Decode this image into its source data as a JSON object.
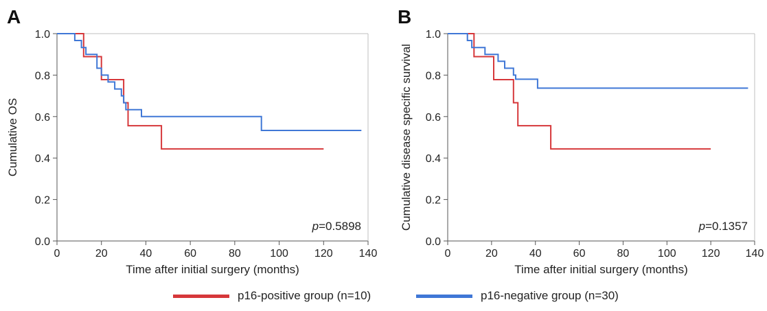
{
  "colors": {
    "p16_positive": "#d6373a",
    "p16_negative": "#3f77d6",
    "axis": "#555555",
    "text": "#222222"
  },
  "legend": {
    "positive_label": "p16-positive group (n=10)",
    "negative_label": "p16-negative group (n=30)"
  },
  "chart_data": [
    {
      "type": "line",
      "panel_label": "A",
      "xlabel": "Time after initial surgery (months)",
      "ylabel": "Cumulative OS",
      "xlim": [
        0,
        140
      ],
      "ylim": [
        0,
        1.0
      ],
      "x_ticks": [
        "0",
        "20",
        "40",
        "60",
        "80",
        "100",
        "120",
        "140"
      ],
      "y_ticks": [
        "0.0",
        "0.2",
        "0.4",
        "0.6",
        "0.8",
        "1.0"
      ],
      "annotation": {
        "p_label": "p",
        "p_value": "=0.5898"
      },
      "series": [
        {
          "name": "p16-positive group (n=10)",
          "color_key": "p16_positive",
          "x": [
            0,
            12,
            12,
            20,
            20,
            22,
            22,
            30,
            30,
            32,
            32,
            47,
            47,
            120
          ],
          "y": [
            1.0,
            1.0,
            0.889,
            0.889,
            0.778,
            0.778,
            0.778,
            0.778,
            0.667,
            0.667,
            0.556,
            0.556,
            0.444,
            0.444
          ]
        },
        {
          "name": "p16-negative group (n=30)",
          "color_key": "p16_negative",
          "x": [
            0,
            8,
            8,
            11,
            11,
            13,
            13,
            18,
            18,
            20,
            20,
            23,
            23,
            26,
            26,
            29,
            29,
            30,
            30,
            31,
            31,
            38,
            38,
            41,
            41,
            92,
            92,
            137
          ],
          "y": [
            1.0,
            1.0,
            0.967,
            0.967,
            0.933,
            0.933,
            0.9,
            0.9,
            0.833,
            0.833,
            0.8,
            0.8,
            0.767,
            0.767,
            0.733,
            0.733,
            0.7,
            0.7,
            0.667,
            0.667,
            0.633,
            0.633,
            0.6,
            0.6,
            0.6,
            0.6,
            0.533,
            0.533
          ]
        }
      ]
    },
    {
      "type": "line",
      "panel_label": "B",
      "xlabel": "Time after initial surgery (months)",
      "ylabel": "Cumulative disease specific survival",
      "xlim": [
        0,
        140
      ],
      "ylim": [
        0,
        1.0
      ],
      "x_ticks": [
        "0",
        "20",
        "40",
        "60",
        "80",
        "100",
        "120",
        "140"
      ],
      "y_ticks": [
        "0.0",
        "0.2",
        "0.4",
        "0.6",
        "0.8",
        "1.0"
      ],
      "annotation": {
        "p_label": "p",
        "p_value": "=0.1357"
      },
      "series": [
        {
          "name": "p16-positive group (n=10)",
          "color_key": "p16_positive",
          "x": [
            0,
            12,
            12,
            21,
            21,
            30,
            30,
            32,
            32,
            47,
            47,
            120
          ],
          "y": [
            1.0,
            1.0,
            0.889,
            0.889,
            0.778,
            0.778,
            0.667,
            0.667,
            0.556,
            0.556,
            0.444,
            0.444
          ]
        },
        {
          "name": "p16-negative group (n=30)",
          "color_key": "p16_negative",
          "x": [
            0,
            9,
            9,
            11,
            11,
            17,
            17,
            23,
            23,
            26,
            26,
            30,
            30,
            31,
            31,
            41,
            41,
            137
          ],
          "y": [
            1.0,
            1.0,
            0.967,
            0.967,
            0.933,
            0.933,
            0.9,
            0.9,
            0.867,
            0.867,
            0.833,
            0.833,
            0.8,
            0.8,
            0.78,
            0.78,
            0.737,
            0.737
          ]
        }
      ]
    }
  ]
}
